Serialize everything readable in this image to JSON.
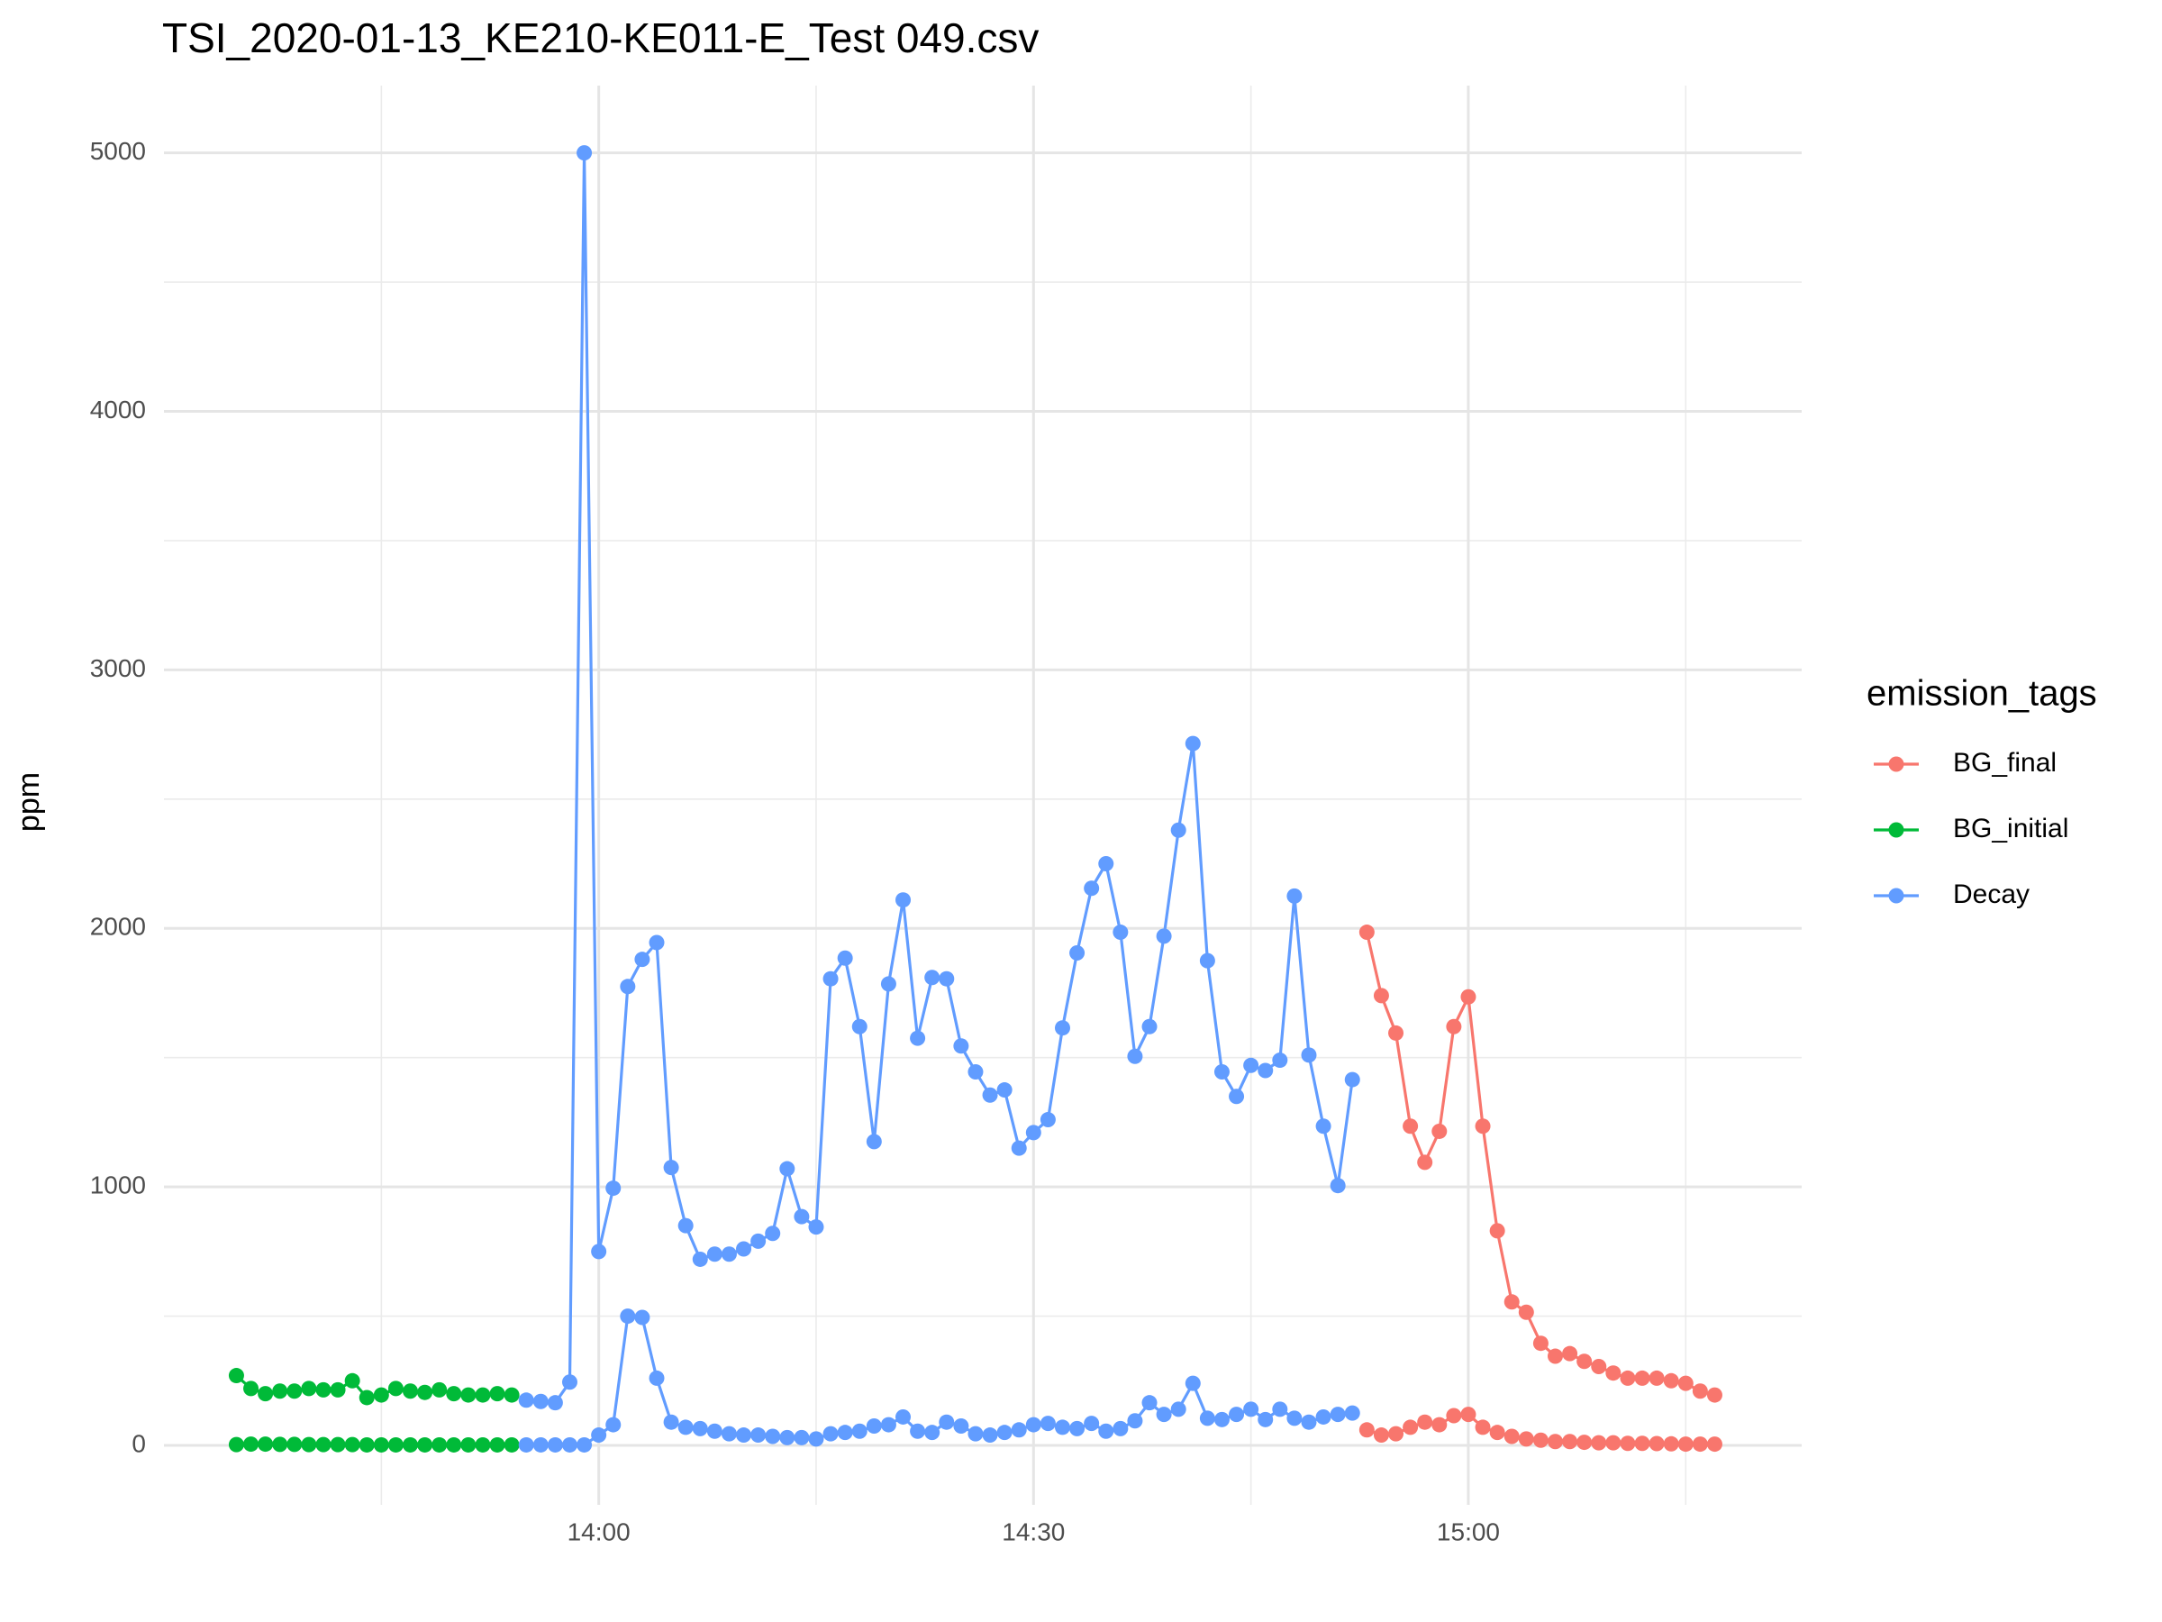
{
  "chart_data": {
    "type": "line",
    "title": "TSI_2020-01-13_KE210-KE011-E_Test 049.csv",
    "y_label": "ppm",
    "legend_title": "emission_tags",
    "legend_position": "right",
    "grid": true,
    "xlim": [
      "13:30",
      "15:23"
    ],
    "xticks": [
      "14:00",
      "14:30",
      "15:00"
    ],
    "x_minor_ticks": [
      "13:45",
      "14:15",
      "14:45",
      "15:15"
    ],
    "ylim": [
      -230,
      5260
    ],
    "yticks": [
      0,
      1000,
      2000,
      3000,
      4000,
      5000
    ],
    "y_minor_ticks": [
      500,
      1500,
      2500,
      3500,
      4500
    ],
    "series": [
      {
        "name": "BG_final",
        "color": "#f8766d",
        "x": [
          "14:53",
          "14:54",
          "14:55",
          "14:56",
          "14:57",
          "14:58",
          "14:59",
          "15:00",
          "15:01",
          "15:02",
          "15:03",
          "15:04",
          "15:05",
          "15:06",
          "15:07",
          "15:08",
          "15:09",
          "15:10",
          "15:11",
          "15:12",
          "15:13",
          "15:14",
          "15:15",
          "15:16",
          "15:17"
        ],
        "values": [
          1985,
          1740,
          1595,
          1235,
          1095,
          1215,
          1620,
          1735,
          1235,
          830,
          555,
          515,
          395,
          345,
          355,
          325,
          305,
          280,
          260,
          260,
          260,
          250,
          240,
          210,
          195
        ],
        "values_2": [
          60,
          40,
          45,
          70,
          90,
          80,
          115,
          120,
          70,
          50,
          35,
          25,
          20,
          15,
          15,
          12,
          10,
          10,
          8,
          8,
          7,
          6,
          5,
          5,
          5
        ]
      },
      {
        "name": "BG_initial",
        "color": "#00ba38",
        "x": [
          "13:35",
          "13:36",
          "13:37",
          "13:38",
          "13:39",
          "13:40",
          "13:41",
          "13:42",
          "13:43",
          "13:44",
          "13:45",
          "13:46",
          "13:47",
          "13:48",
          "13:49",
          "13:50",
          "13:51",
          "13:52",
          "13:53",
          "13:54"
        ],
        "values": [
          270,
          220,
          200,
          210,
          210,
          220,
          215,
          215,
          250,
          185,
          195,
          220,
          210,
          205,
          215,
          200,
          195,
          195,
          200,
          195
        ],
        "values_2": [
          3,
          5,
          5,
          4,
          4,
          3,
          3,
          3,
          3,
          2,
          2,
          2,
          2,
          2,
          2,
          2,
          2,
          2,
          2,
          2
        ]
      },
      {
        "name": "Decay",
        "color": "#619cff",
        "x": [
          "13:55",
          "13:56",
          "13:57",
          "13:58",
          "13:59",
          "14:00",
          "14:01",
          "14:02",
          "14:03",
          "14:04",
          "14:05",
          "14:06",
          "14:07",
          "14:08",
          "14:09",
          "14:10",
          "14:11",
          "14:12",
          "14:13",
          "14:14",
          "14:15",
          "14:16",
          "14:17",
          "14:18",
          "14:19",
          "14:20",
          "14:21",
          "14:22",
          "14:23",
          "14:24",
          "14:25",
          "14:26",
          "14:27",
          "14:28",
          "14:29",
          "14:30",
          "14:31",
          "14:32",
          "14:33",
          "14:34",
          "14:35",
          "14:36",
          "14:37",
          "14:38",
          "14:39",
          "14:40",
          "14:41",
          "14:42",
          "14:43",
          "14:44",
          "14:45",
          "14:46",
          "14:47",
          "14:48",
          "14:49",
          "14:50",
          "14:51",
          "14:52"
        ],
        "values": [
          175,
          170,
          165,
          245,
          5000,
          750,
          995,
          1775,
          1880,
          1945,
          1075,
          850,
          720,
          740,
          740,
          760,
          790,
          820,
          1070,
          885,
          845,
          1805,
          1885,
          1620,
          1175,
          1785,
          2110,
          1575,
          1810,
          1805,
          1545,
          1445,
          1355,
          1375,
          1150,
          1210,
          1260,
          1615,
          1905,
          2155,
          2250,
          1985,
          1505,
          1620,
          1970,
          2380,
          2715,
          1875,
          1445,
          1350,
          1470,
          1450,
          1490,
          2125,
          1510,
          1235,
          1005,
          1415
        ],
        "values_2": [
          2,
          2,
          2,
          2,
          2,
          40,
          80,
          500,
          495,
          260,
          90,
          70,
          65,
          55,
          45,
          40,
          40,
          35,
          30,
          30,
          25,
          45,
          50,
          55,
          75,
          80,
          110,
          55,
          50,
          90,
          75,
          45,
          40,
          50,
          60,
          80,
          85,
          70,
          65,
          85,
          55,
          65,
          95,
          165,
          120,
          140,
          240,
          105,
          100,
          120,
          140,
          100,
          140,
          105,
          90,
          110,
          120,
          125
        ]
      }
    ]
  }
}
